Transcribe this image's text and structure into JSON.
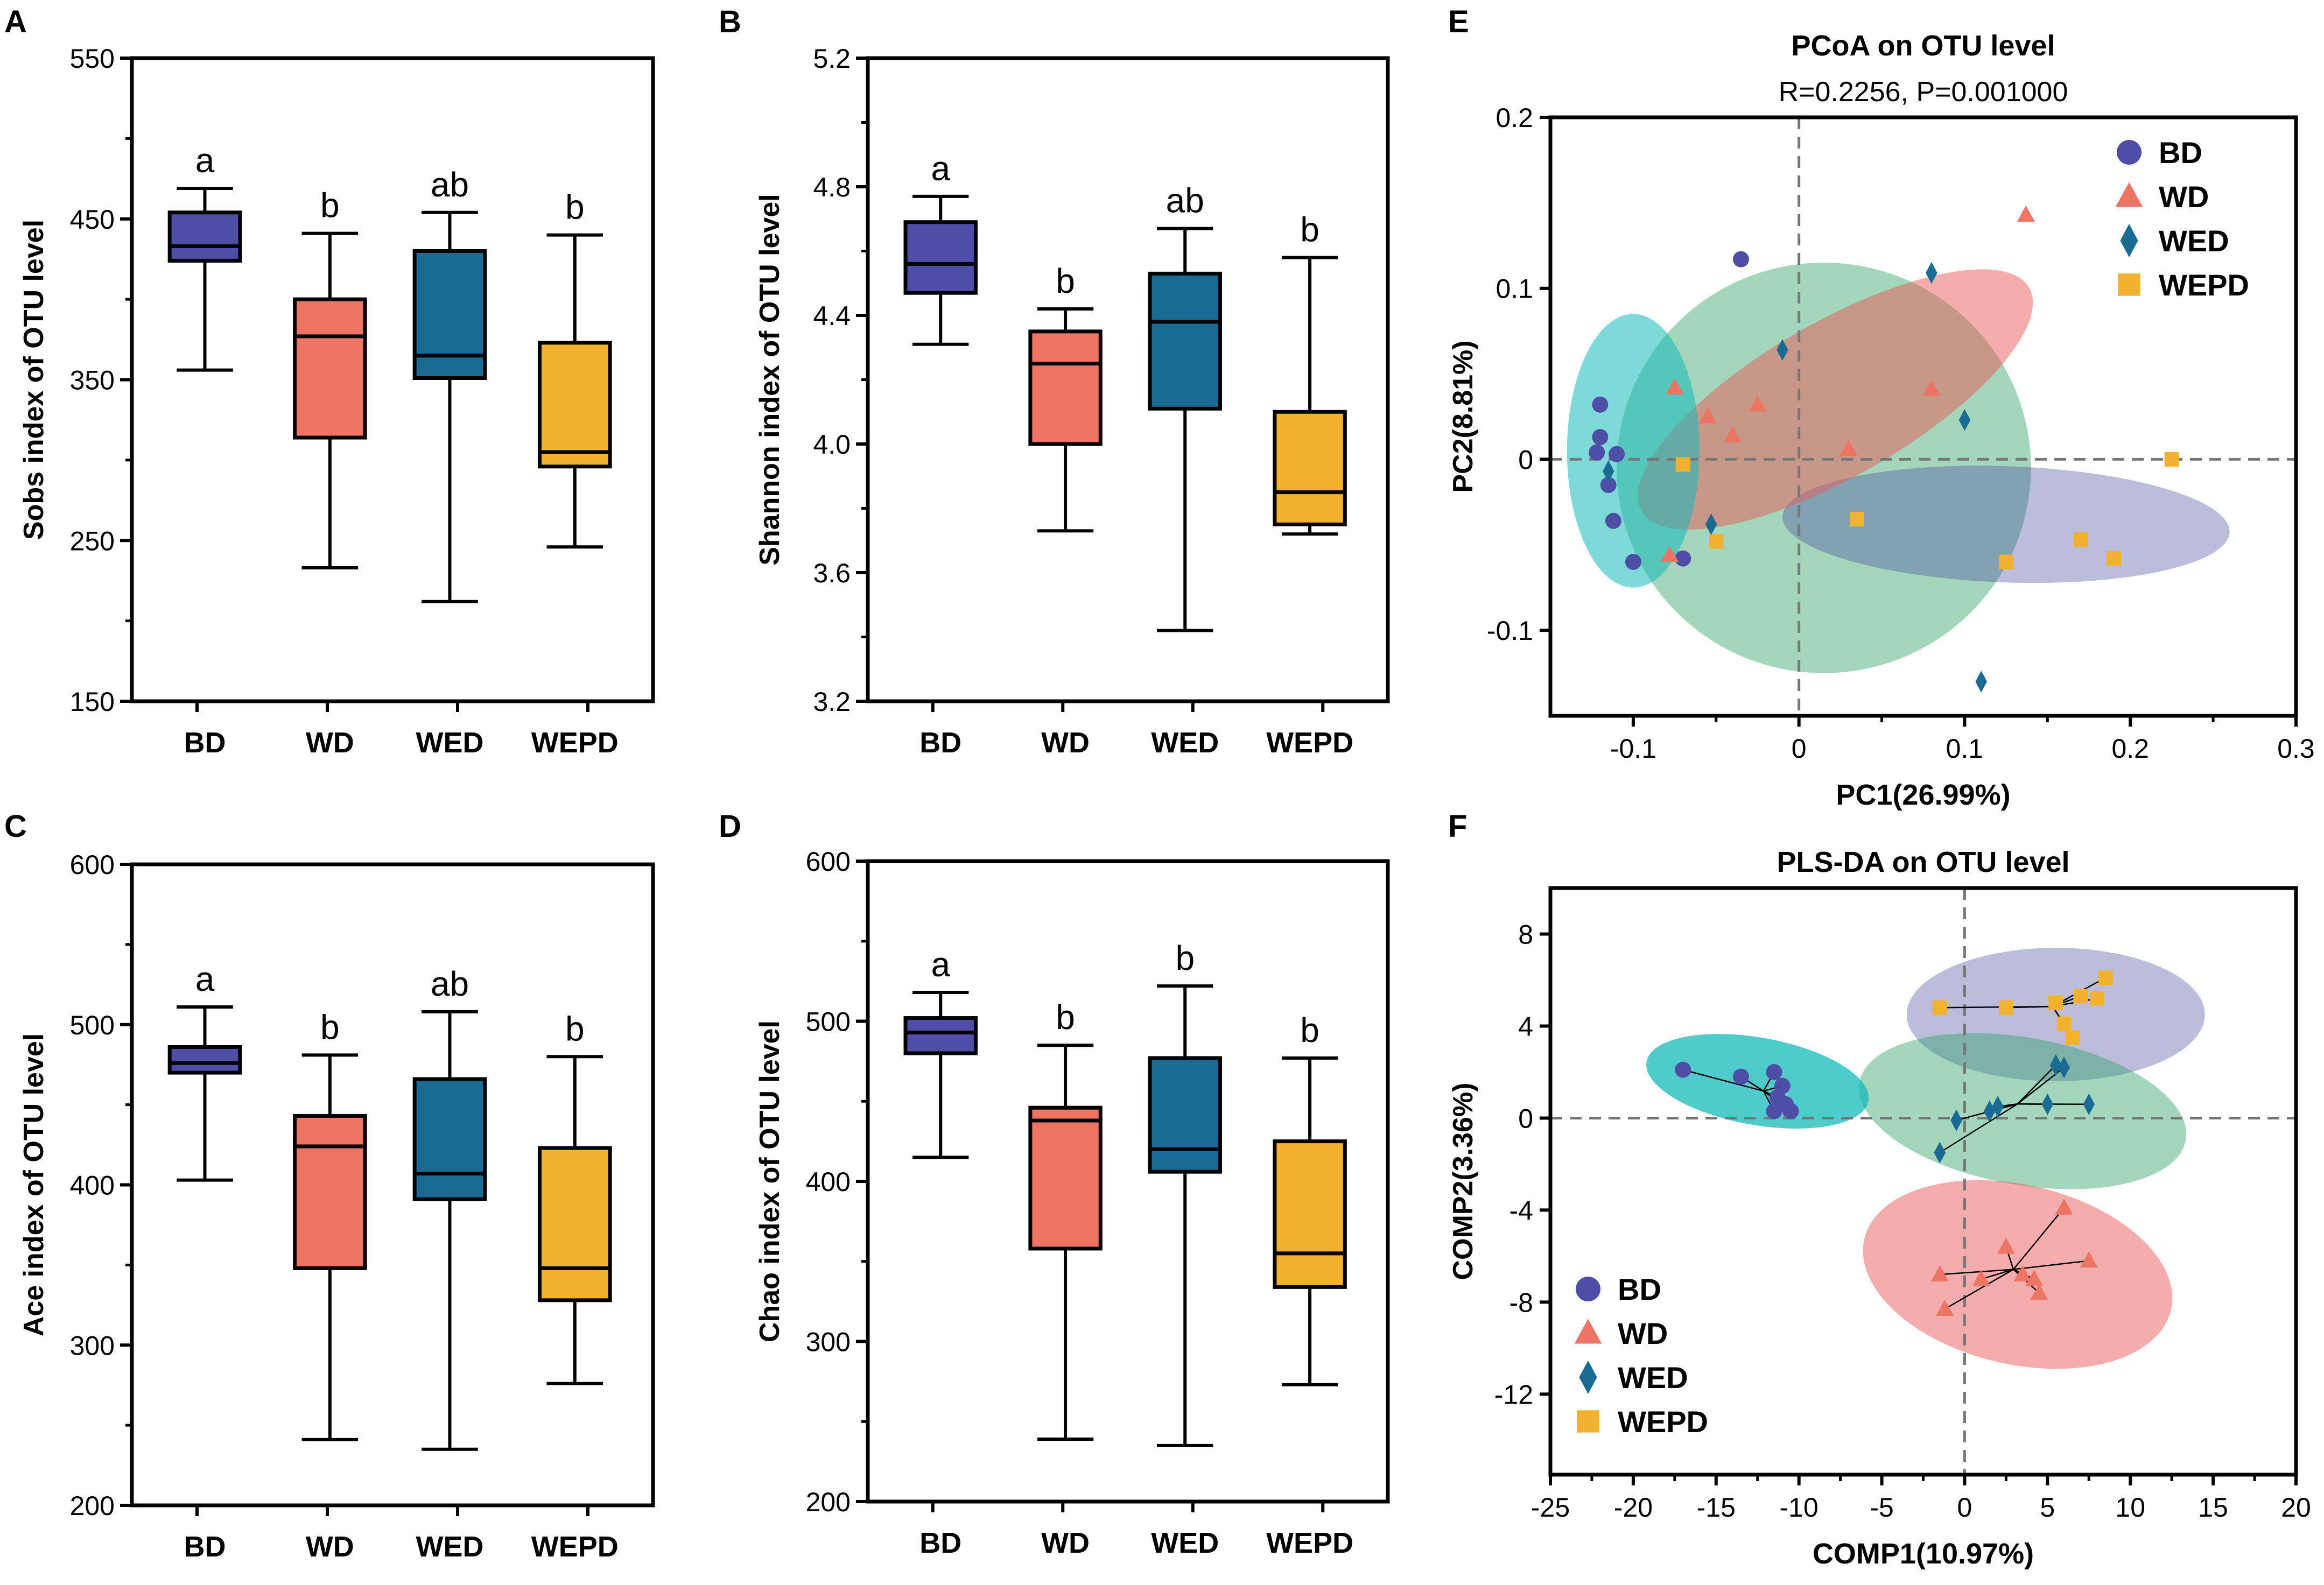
{
  "colors": {
    "BD": "#4f4ea6",
    "WD": "#ee7463",
    "WED": "#1a6b93",
    "WEPD": "#f2b22f"
  },
  "legend_groups": [
    "BD",
    "WD",
    "WED",
    "WEPD"
  ],
  "chart_data": [
    {
      "panel": "A",
      "type": "box",
      "ylabel": "Sobs index of OTU level",
      "yticks": [
        "150",
        "250",
        "350",
        "450",
        "550"
      ],
      "ylim": [
        150,
        550
      ],
      "categories": [
        "BD",
        "WD",
        "WED",
        "WEPD"
      ],
      "boxes": [
        {
          "min": 356,
          "q1": 424,
          "median": 433,
          "q3": 454,
          "max": 469
        },
        {
          "min": 233,
          "q1": 314,
          "median": 377,
          "q3": 400,
          "max": 441
        },
        {
          "min": 212,
          "q1": 351,
          "median": 365,
          "q3": 430,
          "max": 454
        },
        {
          "min": 246,
          "q1": 296,
          "median": 305,
          "q3": 373,
          "max": 440
        }
      ],
      "letters": [
        "a",
        "b",
        "ab",
        "b"
      ]
    },
    {
      "panel": "B",
      "type": "box",
      "ylabel": "Shannon index of OTU level",
      "yticks": [
        "3.2",
        "3.6",
        "4.0",
        "4.4",
        "4.8",
        "5.2"
      ],
      "ylim": [
        3.2,
        5.2
      ],
      "categories": [
        "BD",
        "WD",
        "WED",
        "WEPD"
      ],
      "boxes": [
        {
          "min": 4.31,
          "q1": 4.47,
          "median": 4.56,
          "q3": 4.69,
          "max": 4.77
        },
        {
          "min": 3.73,
          "q1": 4.0,
          "median": 4.25,
          "q3": 4.35,
          "max": 4.42
        },
        {
          "min": 3.42,
          "q1": 4.11,
          "median": 4.38,
          "q3": 4.53,
          "max": 4.67
        },
        {
          "min": 3.72,
          "q1": 3.75,
          "median": 3.85,
          "q3": 4.1,
          "max": 4.58
        }
      ],
      "letters": [
        "a",
        "b",
        "ab",
        "b"
      ]
    },
    {
      "panel": "C",
      "type": "box",
      "ylabel": "Ace index of OTU level",
      "yticks": [
        "200",
        "300",
        "400",
        "500",
        "600"
      ],
      "ylim": [
        200,
        600
      ],
      "categories": [
        "BD",
        "WD",
        "WED",
        "WEPD"
      ],
      "boxes": [
        {
          "min": 403,
          "q1": 470,
          "median": 476,
          "q3": 486,
          "max": 511
        },
        {
          "min": 241,
          "q1": 348,
          "median": 424,
          "q3": 443,
          "max": 481
        },
        {
          "min": 235,
          "q1": 391,
          "median": 407,
          "q3": 466,
          "max": 508
        },
        {
          "min": 276,
          "q1": 328,
          "median": 348,
          "q3": 423,
          "max": 480
        }
      ],
      "letters": [
        "a",
        "b",
        "ab",
        "b"
      ]
    },
    {
      "panel": "D",
      "type": "box",
      "ylabel": "Chao index of OTU level",
      "yticks": [
        "200",
        "300",
        "400",
        "500",
        "600"
      ],
      "ylim": [
        200,
        600
      ],
      "categories": [
        "BD",
        "WD",
        "WED",
        "WEPD"
      ],
      "boxes": [
        {
          "min": 415,
          "q1": 480,
          "median": 493,
          "q3": 502,
          "max": 518
        },
        {
          "min": 239,
          "q1": 358,
          "median": 438,
          "q3": 446,
          "max": 485
        },
        {
          "min": 235,
          "q1": 406,
          "median": 420,
          "q3": 477,
          "max": 522
        },
        {
          "min": 273,
          "q1": 334,
          "median": 355,
          "q3": 425,
          "max": 477
        }
      ],
      "letters": [
        "a",
        "b",
        "b",
        "b"
      ]
    },
    {
      "panel": "E",
      "type": "scatter",
      "title": "PCoA on OTU level",
      "subtitle": "R=0.2256, P=0.001000",
      "xlabel": "PC1(26.99%)",
      "ylabel": "PC2(8.81%)",
      "xlim": [
        -0.15,
        0.3
      ],
      "ylim": [
        -0.15,
        0.2
      ],
      "xticks": [
        {
          "v": -0.1,
          "t": "-0.1"
        },
        {
          "v": 0,
          "t": "0"
        },
        {
          "v": 0.1,
          "t": "0.1"
        },
        {
          "v": 0.2,
          "t": "0.2"
        },
        {
          "v": 0.3,
          "t": "0.3"
        }
      ],
      "yticks": [
        {
          "v": -0.1,
          "t": "-0.1"
        },
        {
          "v": 0,
          "t": "0"
        },
        {
          "v": 0.1,
          "t": "0.1"
        },
        {
          "v": 0.2,
          "t": "0.2"
        }
      ],
      "legend_position": "top-right",
      "ellipses": [
        {
          "group": "WED",
          "cx": 0.015,
          "cy": -0.005,
          "rx": 0.125,
          "ry": 0.12,
          "angle": 0
        },
        {
          "group": "BD",
          "cx": 0.125,
          "cy": -0.038,
          "rx": 0.135,
          "ry": 0.034,
          "angle": -2
        },
        {
          "group": "WD",
          "cx": 0.022,
          "cy": 0.035,
          "rx": 0.135,
          "ry": 0.045,
          "angle": 30
        },
        {
          "group": "BD-core",
          "cx": -0.1,
          "cy": 0.005,
          "rx": 0.04,
          "ry": 0.08,
          "angle": 0
        }
      ],
      "series": [
        {
          "name": "BD",
          "points": [
            [
              -0.12,
              0.032
            ],
            [
              -0.12,
              0.013
            ],
            [
              -0.122,
              0.004
            ],
            [
              -0.11,
              0.003
            ],
            [
              -0.115,
              -0.015
            ],
            [
              -0.112,
              -0.036
            ],
            [
              -0.1,
              -0.06
            ],
            [
              -0.07,
              -0.058
            ],
            [
              -0.035,
              0.117
            ]
          ]
        },
        {
          "name": "WD",
          "points": [
            [
              -0.075,
              0.042
            ],
            [
              -0.055,
              0.025
            ],
            [
              -0.04,
              0.014
            ],
            [
              -0.025,
              0.032
            ],
            [
              0.03,
              0.006
            ],
            [
              0.08,
              0.041
            ],
            [
              0.137,
              0.143
            ],
            [
              -0.078,
              -0.056
            ]
          ]
        },
        {
          "name": "WED",
          "points": [
            [
              -0.115,
              -0.007
            ],
            [
              -0.053,
              -0.038
            ],
            [
              -0.01,
              0.064
            ],
            [
              0.08,
              0.109
            ],
            [
              0.1,
              0.023
            ],
            [
              0.11,
              -0.13
            ]
          ]
        },
        {
          "name": "WEPD",
          "points": [
            [
              -0.07,
              -0.003
            ],
            [
              -0.05,
              -0.048
            ],
            [
              0.035,
              -0.035
            ],
            [
              0.125,
              -0.06
            ],
            [
              0.17,
              -0.047
            ],
            [
              0.19,
              -0.058
            ],
            [
              0.225,
              0.0
            ]
          ]
        }
      ]
    },
    {
      "panel": "F",
      "type": "scatter",
      "title": "PLS-DA on OTU level",
      "xlabel": "COMP1(10.97%)",
      "ylabel": "COMP2(3.36%)",
      "xlim": [
        -25,
        20
      ],
      "ylim": [
        -15.5,
        10
      ],
      "xticks": [
        {
          "v": -25,
          "t": "-25"
        },
        {
          "v": -20,
          "t": "-20"
        },
        {
          "v": -15,
          "t": "-15"
        },
        {
          "v": -10,
          "t": "-10"
        },
        {
          "v": -5,
          "t": "-5"
        },
        {
          "v": 0,
          "t": "0"
        },
        {
          "v": 5,
          "t": "5"
        },
        {
          "v": 10,
          "t": "10"
        },
        {
          "v": 15,
          "t": "15"
        },
        {
          "v": 20,
          "t": "20"
        }
      ],
      "yticks": [
        {
          "v": -12,
          "t": "-12"
        },
        {
          "v": -8,
          "t": "-8"
        },
        {
          "v": -4,
          "t": "-4"
        },
        {
          "v": 0,
          "t": "0"
        },
        {
          "v": 4,
          "t": "4"
        },
        {
          "v": 8,
          "t": "8"
        }
      ],
      "legend_position": "bottom-left",
      "ellipses": [
        {
          "group": "BD",
          "cx": 5.5,
          "cy": 4.5,
          "rx": 9,
          "ry": 2.9,
          "angle": 0
        },
        {
          "group": "WED",
          "cx": 3.5,
          "cy": 0.3,
          "rx": 10,
          "ry": 3.2,
          "angle": -10
        },
        {
          "group": "WD",
          "cx": 3.2,
          "cy": -6.8,
          "rx": 9.5,
          "ry": 3.9,
          "angle": -13
        },
        {
          "group": "WED-core",
          "cx": -12.5,
          "cy": 1.6,
          "rx": 6.8,
          "ry": 1.9,
          "angle": -10
        }
      ],
      "series": [
        {
          "name": "BD",
          "points": [
            [
              -17,
              2.1
            ],
            [
              -13.5,
              1.8
            ],
            [
              -11.5,
              2.0
            ],
            [
              -11.0,
              1.4
            ],
            [
              -11.3,
              0.9
            ],
            [
              -10.8,
              0.6
            ],
            [
              -11.5,
              0.3
            ],
            [
              -10.5,
              0.3
            ]
          ]
        },
        {
          "name": "WD",
          "points": [
            [
              -1.5,
              -6.8
            ],
            [
              -1.2,
              -8.3
            ],
            [
              1.0,
              -7.0
            ],
            [
              2.5,
              -5.6
            ],
            [
              3.5,
              -6.8
            ],
            [
              4.2,
              -7.0
            ],
            [
              4.5,
              -7.6
            ],
            [
              6,
              -3.9
            ],
            [
              7.5,
              -6.2
            ]
          ]
        },
        {
          "name": "WED",
          "points": [
            [
              -1.5,
              -1.5
            ],
            [
              -0.5,
              -0.1
            ],
            [
              1.5,
              0.3
            ],
            [
              2.0,
              0.5
            ],
            [
              5.0,
              0.6
            ],
            [
              5.5,
              2.3
            ],
            [
              6.0,
              2.2
            ],
            [
              7.5,
              0.6
            ]
          ]
        },
        {
          "name": "WEPD",
          "points": [
            [
              -1.5,
              4.8
            ],
            [
              2.5,
              4.8
            ],
            [
              5.5,
              5.0
            ],
            [
              6.0,
              4.1
            ],
            [
              6.5,
              3.5
            ],
            [
              7.0,
              5.3
            ],
            [
              8.0,
              5.2
            ],
            [
              8.5,
              6.1
            ]
          ]
        }
      ]
    }
  ]
}
